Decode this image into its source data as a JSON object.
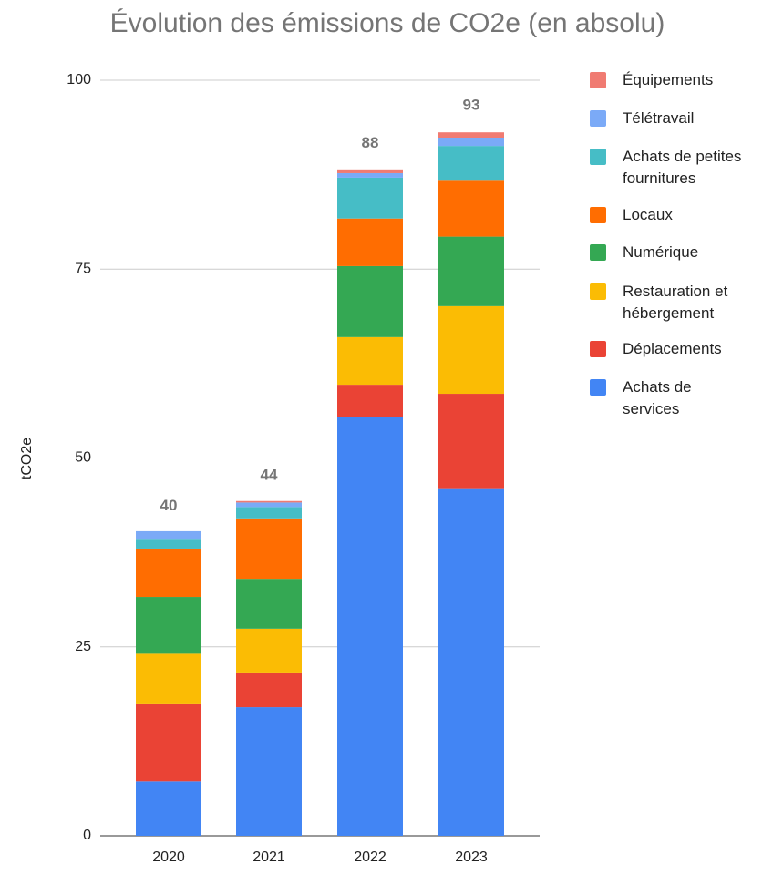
{
  "chart_data": {
    "type": "stacked_bar",
    "title": "Évolution des émissions de CO2e (en absolu)",
    "y_label": "tCO2e",
    "categories": [
      "2020",
      "2021",
      "2022",
      "2023"
    ],
    "series": [
      {
        "name": "Achats de services",
        "color": "#4285f4",
        "values": [
          7.2,
          17.0,
          55.4,
          46.0
        ]
      },
      {
        "name": "Déplacements",
        "color": "#ea4335",
        "values": [
          10.3,
          4.6,
          4.3,
          12.5
        ]
      },
      {
        "name": "Restauration et hébergement",
        "color": "#fbbc04",
        "values": [
          6.7,
          5.8,
          6.3,
          11.6
        ]
      },
      {
        "name": "Numérique",
        "color": "#34a853",
        "values": [
          7.4,
          6.6,
          9.4,
          9.2
        ]
      },
      {
        "name": "Locaux",
        "color": "#ff6d01",
        "values": [
          6.4,
          8.0,
          6.3,
          7.4
        ]
      },
      {
        "name": "Achats de petites fournitures",
        "color": "#46bdc6",
        "values": [
          1.3,
          1.5,
          5.4,
          4.6
        ]
      },
      {
        "name": "Télétravail",
        "color": "#7baaf7",
        "values": [
          1.0,
          0.6,
          0.6,
          1.1
        ]
      },
      {
        "name": "Équipements",
        "color": "#f07b72",
        "values": [
          0,
          0.2,
          0.5,
          0.7
        ]
      }
    ],
    "totals": [
      40,
      44,
      88,
      93
    ],
    "ylim": [
      0,
      100
    ],
    "yticks": [
      0,
      25,
      50,
      75,
      100
    ],
    "grid": true
  }
}
